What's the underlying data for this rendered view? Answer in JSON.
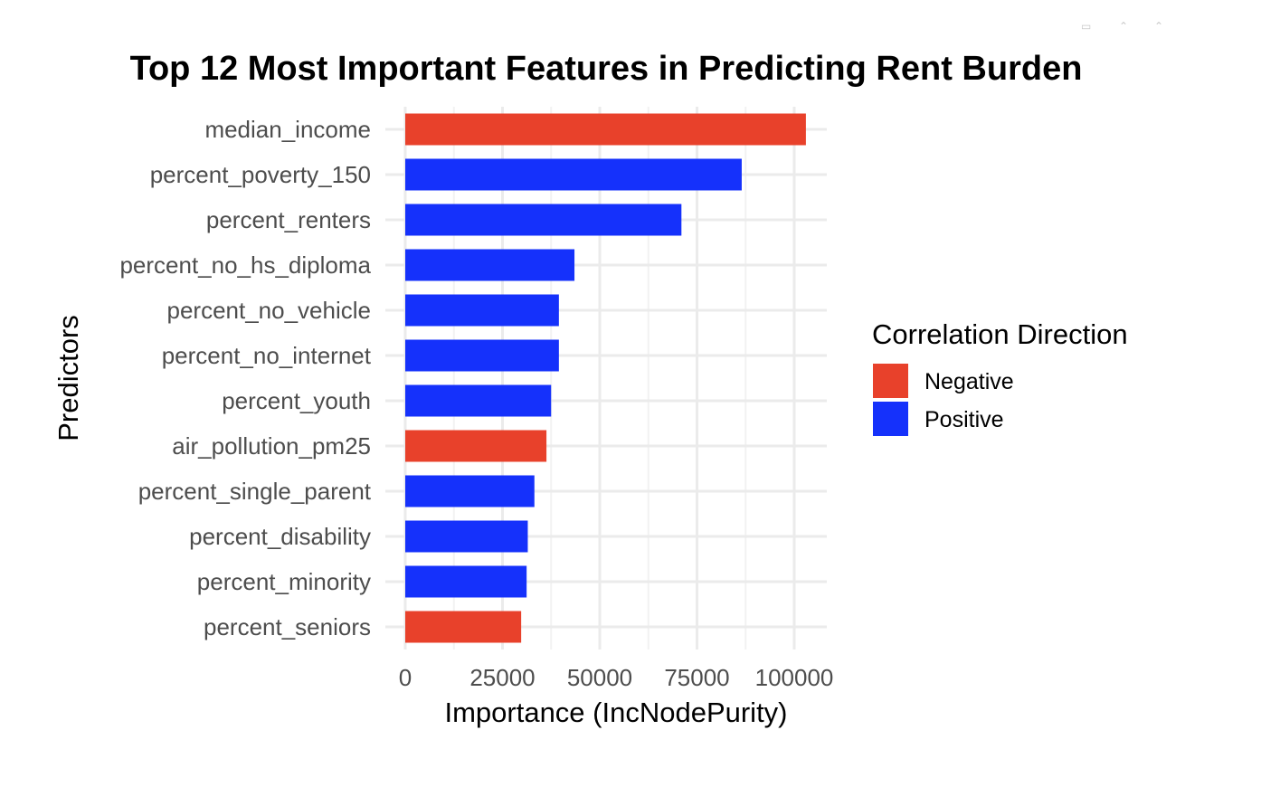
{
  "chart_data": {
    "type": "bar",
    "orientation": "horizontal",
    "title": "Top 12 Most Important Features in Predicting Rent Burden",
    "xlabel": "Importance (IncNodePurity)",
    "ylabel": "Predictors",
    "xlim": [
      0,
      108000
    ],
    "xticks": [
      0,
      25000,
      50000,
      75000,
      100000
    ],
    "xtick_labels": [
      "0",
      "25000",
      "50000",
      "75000",
      "100000"
    ],
    "grid": true,
    "legend": {
      "title": "Correlation Direction",
      "placement": "right",
      "entries": [
        {
          "label": "Negative",
          "color": "#e8412b"
        },
        {
          "label": "Positive",
          "color": "#1531fb"
        }
      ]
    },
    "categories": [
      "median_income",
      "percent_poverty_150",
      "percent_renters",
      "percent_no_hs_diploma",
      "percent_no_vehicle",
      "percent_no_internet",
      "percent_youth",
      "air_pollution_pm25",
      "percent_single_parent",
      "percent_disability",
      "percent_minority",
      "percent_seniors"
    ],
    "values": [
      103000,
      86500,
      71000,
      43500,
      39500,
      39500,
      37500,
      36300,
      33200,
      31500,
      31200,
      29800
    ],
    "directions": [
      "Negative",
      "Positive",
      "Positive",
      "Positive",
      "Positive",
      "Positive",
      "Positive",
      "Negative",
      "Positive",
      "Positive",
      "Positive",
      "Negative"
    ]
  },
  "window_controls": [
    {
      "name": "restore-icon",
      "glyph": "▭"
    },
    {
      "name": "minimize-icon",
      "glyph": "⌃"
    },
    {
      "name": "close-icon",
      "glyph": "⌃"
    }
  ]
}
